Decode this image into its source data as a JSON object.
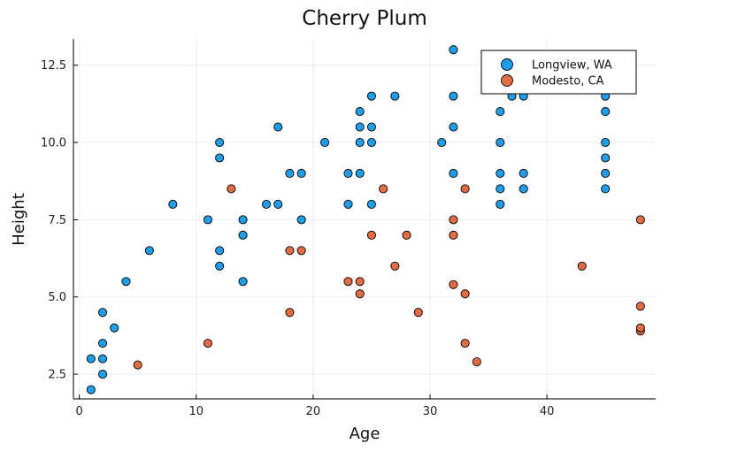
{
  "chart_data": {
    "type": "scatter",
    "title": "Cherry Plum",
    "xlabel": "Age",
    "ylabel": "Height",
    "xlim": [
      -0.5,
      49.3
    ],
    "ylim": [
      1.7,
      13.35
    ],
    "xticks": [
      0,
      10,
      20,
      30,
      40
    ],
    "xtick_labels": [
      "0",
      "10",
      "20",
      "30",
      "40"
    ],
    "yticks": [
      2.5,
      5.0,
      7.5,
      10.0,
      12.5
    ],
    "ytick_labels": [
      "2.5",
      "5.0",
      "7.5",
      "10.0",
      "12.5"
    ],
    "grid": true,
    "legend_position": "top-right",
    "series": [
      {
        "name": "Longview, WA",
        "color": "#1f9de6",
        "points": [
          [
            1,
            2.0
          ],
          [
            1,
            3.0
          ],
          [
            2,
            2.5
          ],
          [
            2,
            3.0
          ],
          [
            2,
            3.5
          ],
          [
            2,
            4.5
          ],
          [
            3,
            4.0
          ],
          [
            4,
            5.5
          ],
          [
            6,
            6.5
          ],
          [
            8,
            8.0
          ],
          [
            11,
            7.5
          ],
          [
            12,
            6.0
          ],
          [
            12,
            6.5
          ],
          [
            12,
            9.5
          ],
          [
            12,
            10.0
          ],
          [
            14,
            5.5
          ],
          [
            14,
            7.0
          ],
          [
            14,
            7.5
          ],
          [
            16,
            8.0
          ],
          [
            17,
            8.0
          ],
          [
            17,
            10.5
          ],
          [
            18,
            9.0
          ],
          [
            19,
            7.5
          ],
          [
            19,
            9.0
          ],
          [
            21,
            10.0
          ],
          [
            23,
            8.0
          ],
          [
            23,
            9.0
          ],
          [
            24,
            9.0
          ],
          [
            24,
            10.0
          ],
          [
            24,
            10.5
          ],
          [
            24,
            11.0
          ],
          [
            25,
            8.0
          ],
          [
            25,
            10.0
          ],
          [
            25,
            10.5
          ],
          [
            25,
            11.5
          ],
          [
            27,
            11.5
          ],
          [
            31,
            10.0
          ],
          [
            32,
            9.0
          ],
          [
            32,
            10.5
          ],
          [
            32,
            11.5
          ],
          [
            32,
            13.0
          ],
          [
            36,
            8.0
          ],
          [
            36,
            8.5
          ],
          [
            36,
            9.0
          ],
          [
            36,
            10.0
          ],
          [
            36,
            11.0
          ],
          [
            37,
            11.5
          ],
          [
            38,
            8.5
          ],
          [
            38,
            9.0
          ],
          [
            38,
            11.5
          ],
          [
            45,
            8.5
          ],
          [
            45,
            9.0
          ],
          [
            45,
            9.5
          ],
          [
            45,
            10.0
          ],
          [
            45,
            11.0
          ],
          [
            45,
            11.5
          ]
        ]
      },
      {
        "name": "Modesto, CA",
        "color": "#e26d45",
        "points": [
          [
            5,
            2.8
          ],
          [
            11,
            3.5
          ],
          [
            13,
            8.5
          ],
          [
            18,
            4.5
          ],
          [
            18,
            6.5
          ],
          [
            19,
            6.5
          ],
          [
            23,
            5.5
          ],
          [
            24,
            5.1
          ],
          [
            24,
            5.5
          ],
          [
            25,
            7.0
          ],
          [
            26,
            8.5
          ],
          [
            27,
            6.0
          ],
          [
            28,
            7.0
          ],
          [
            29,
            4.5
          ],
          [
            32,
            5.4
          ],
          [
            32,
            7.0
          ],
          [
            32,
            7.5
          ],
          [
            33,
            3.5
          ],
          [
            33,
            5.1
          ],
          [
            33,
            8.5
          ],
          [
            34,
            2.9
          ],
          [
            43,
            6.0
          ],
          [
            48,
            3.9
          ],
          [
            48,
            4.0
          ],
          [
            48,
            4.7
          ],
          [
            48,
            7.5
          ]
        ]
      }
    ]
  }
}
